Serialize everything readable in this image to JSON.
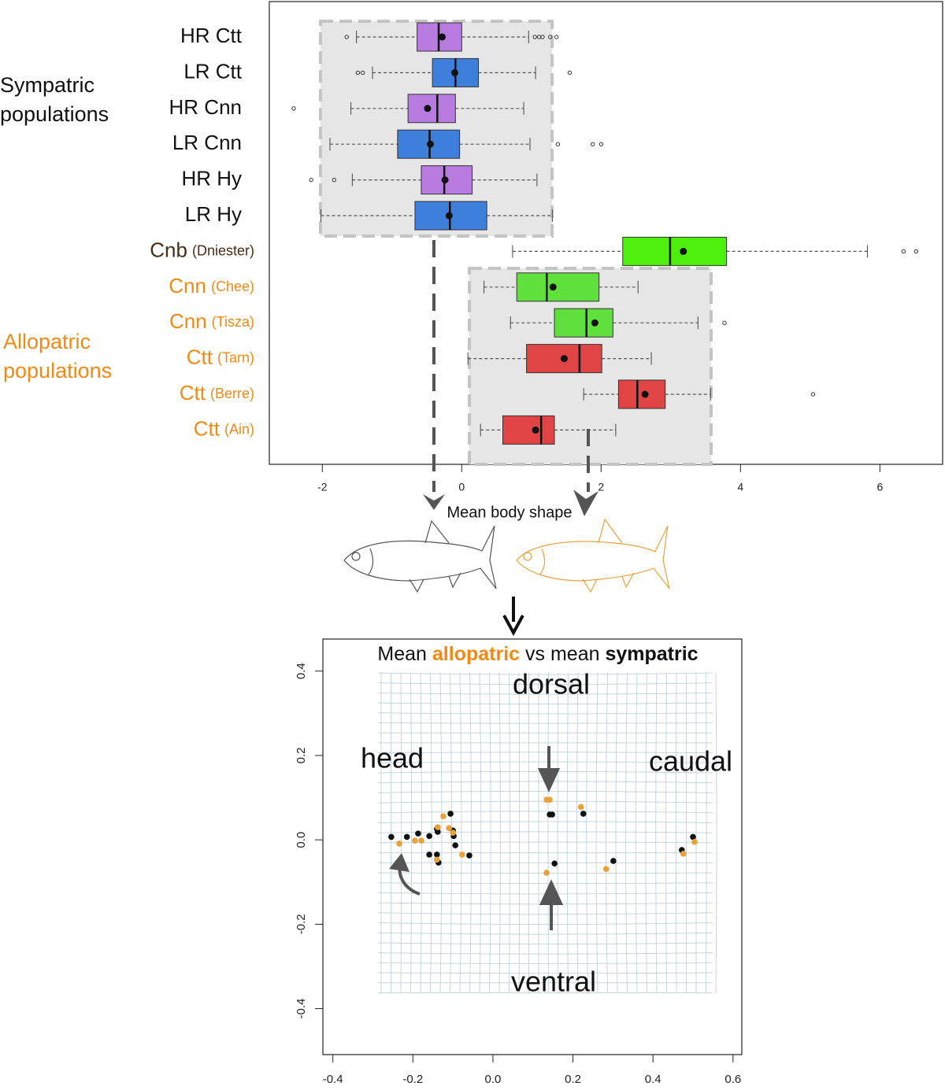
{
  "chart_data": [
    {
      "type": "boxplot",
      "categories": [
        "HR Ctt",
        "LR Ctt",
        "HR Cnn",
        "LR Cnn",
        "HR Hy",
        "LR Hy",
        "Cnb",
        "Cnn",
        "Cnn",
        "Ctt",
        "Ctt",
        "Ctt"
      ],
      "category_sources": [
        null,
        null,
        null,
        null,
        null,
        null,
        "(Dniester)",
        "(Chee)",
        "(Tisza)",
        "(Tarn)",
        "(Berre)",
        "(Ain)"
      ],
      "label_colors": [
        "#111111",
        "#111111",
        "#111111",
        "#111111",
        "#111111",
        "#111111",
        "#4a2c14",
        "#ef8a17",
        "#ef8a17",
        "#ef8a17",
        "#ef8a17",
        "#ef8a17"
      ],
      "colors": [
        "#b87ce0",
        "#3f7fdc",
        "#b87ce0",
        "#3f7fdc",
        "#b87ce0",
        "#3f7fdc",
        "#4cf00c",
        "#5fe03c",
        "#5fe03c",
        "#e04444",
        "#e04444",
        "#e04444"
      ],
      "group_labels": [
        {
          "lines": [
            "Sympatric",
            "populations"
          ],
          "color": "#111111"
        },
        {
          "lines": [
            "Allopatric",
            "populations"
          ],
          "color": "#ef8a17"
        }
      ],
      "boxes": [
        {
          "low": -1.51,
          "q1": -0.64,
          "median": -0.33,
          "q3": 0.0,
          "high": 0.96,
          "mean": -0.28,
          "outliers": [
            -1.65,
            1.05,
            1.11,
            1.16,
            1.27,
            1.36
          ]
        },
        {
          "low": -1.28,
          "q1": -0.42,
          "median": -0.09,
          "q3": 0.24,
          "high": 1.06,
          "mean": -0.1,
          "outliers": [
            -1.49,
            -1.42,
            1.55
          ]
        },
        {
          "low": -1.59,
          "q1": -0.77,
          "median": -0.35,
          "q3": -0.09,
          "high": 0.89,
          "mean": -0.49,
          "outliers": [
            -2.41
          ]
        },
        {
          "low": -1.89,
          "q1": -0.92,
          "median": -0.46,
          "q3": -0.03,
          "high": 0.98,
          "mean": -0.45,
          "outliers": [
            1.38,
            1.88,
            2.0
          ]
        },
        {
          "low": -1.57,
          "q1": -0.58,
          "median": -0.25,
          "q3": 0.15,
          "high": 1.08,
          "mean": -0.24,
          "outliers": [
            -2.16,
            -1.83
          ]
        },
        {
          "low": -2.02,
          "q1": -0.67,
          "median": -0.17,
          "q3": 0.36,
          "high": 1.3,
          "mean": -0.18,
          "outliers": []
        },
        {
          "low": 0.73,
          "q1": 2.31,
          "median": 2.99,
          "q3": 3.8,
          "high": 5.82,
          "mean": 3.18,
          "outliers": [
            6.34,
            6.52
          ]
        },
        {
          "low": 0.32,
          "q1": 0.79,
          "median": 1.22,
          "q3": 1.97,
          "high": 2.53,
          "mean": 1.31,
          "outliers": []
        },
        {
          "low": 0.7,
          "q1": 1.33,
          "median": 1.79,
          "q3": 2.17,
          "high": 3.39,
          "mean": 1.91,
          "outliers": [
            3.77
          ]
        },
        {
          "low": 0.09,
          "q1": 0.93,
          "median": 1.69,
          "q3": 2.01,
          "high": 2.72,
          "mean": 1.47,
          "outliers": []
        },
        {
          "low": 1.75,
          "q1": 2.25,
          "median": 2.52,
          "q3": 2.92,
          "high": 3.57,
          "mean": 2.63,
          "outliers": [
            5.04
          ]
        },
        {
          "low": 0.27,
          "q1": 0.59,
          "median": 1.14,
          "q3": 1.33,
          "high": 2.21,
          "mean": 1.06,
          "outliers": []
        }
      ],
      "xlim": [
        -2.76,
        6.9
      ],
      "xticks": [
        -2,
        0,
        2,
        4,
        6
      ],
      "caption": "Mean  body shape"
    },
    {
      "type": "scatter",
      "title_parts": [
        "Mean",
        "allopatric",
        "vs mean",
        "sympatric"
      ],
      "annotations": [
        "dorsal",
        "head",
        "caudal",
        "ventral"
      ],
      "series": [
        {
          "color": "#111111",
          "x": [
            -0.254,
            -0.215,
            -0.187,
            -0.159,
            -0.14,
            -0.138,
            -0.106,
            -0.1,
            -0.098,
            -0.094,
            -0.159,
            -0.14,
            -0.136,
            -0.059,
            0.142,
            0.148,
            0.154,
            0.226,
            0.301,
            0.472,
            0.5
          ],
          "values": [
            0.007,
            0.007,
            0.015,
            0.009,
            0.026,
            0.019,
            0.062,
            0.022,
            0.009,
            -0.013,
            -0.035,
            -0.035,
            -0.054,
            -0.037,
            0.06,
            0.06,
            -0.056,
            0.062,
            -0.05,
            -0.024,
            0.007
          ]
        },
        {
          "color": "#e8a23c",
          "x": [
            -0.234,
            -0.195,
            -0.179,
            -0.138,
            -0.124,
            -0.11,
            -0.1,
            -0.077,
            -0.14,
            0.134,
            0.142,
            0.22,
            0.134,
            0.283,
            0.476,
            0.504
          ],
          "values": [
            -0.009,
            -0.002,
            -0.002,
            0.03,
            0.056,
            0.028,
            0.017,
            -0.035,
            -0.047,
            0.095,
            0.095,
            0.078,
            -0.078,
            -0.069,
            -0.033,
            -0.005
          ]
        }
      ],
      "xlim": [
        -0.425,
        0.622
      ],
      "ylim": [
        -0.509,
        0.476
      ],
      "xticks": [
        -0.4,
        -0.2,
        {
          "value": 0,
          "label": "0.0"
        },
        0.2,
        0.4,
        0.6
      ],
      "yticks": [
        -0.4,
        -0.2,
        {
          "value": 0,
          "label": "0.0"
        },
        0.2,
        0.4
      ]
    }
  ]
}
